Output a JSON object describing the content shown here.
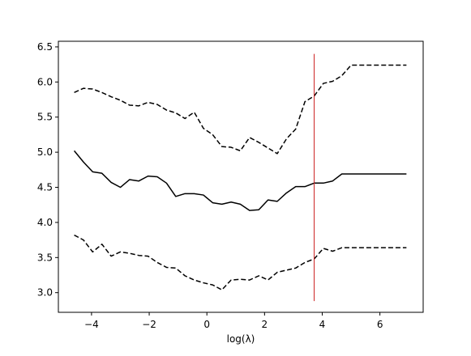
{
  "chart_data": {
    "type": "line",
    "xlabel": "log(λ)",
    "ylabel": "",
    "xlim": [
      -5.15,
      7.5
    ],
    "ylim": [
      2.72,
      6.58
    ],
    "xticks": [
      -4,
      -2,
      0,
      2,
      4,
      6
    ],
    "xtick_labels": [
      "−4",
      "−2",
      "0",
      "2",
      "4",
      "6"
    ],
    "yticks": [
      3.0,
      3.5,
      4.0,
      4.5,
      5.0,
      5.5,
      6.0,
      6.5
    ],
    "ytick_labels": [
      "3.0",
      "3.5",
      "4.0",
      "4.5",
      "5.0",
      "5.5",
      "6.0",
      "6.5"
    ],
    "grid": false,
    "x": [
      -4.6,
      -4.28,
      -3.96,
      -3.64,
      -3.32,
      -3.0,
      -2.68,
      -2.36,
      -2.04,
      -1.72,
      -1.4,
      -1.08,
      -0.76,
      -0.44,
      -0.12,
      0.2,
      0.52,
      0.84,
      1.16,
      1.48,
      1.8,
      2.12,
      2.44,
      2.76,
      3.08,
      3.4,
      3.72,
      4.04,
      4.36,
      4.68,
      5.0,
      5.32,
      5.64,
      5.96,
      6.28,
      6.6,
      6.92
    ],
    "series": [
      {
        "role": "mean",
        "color": "#000000",
        "dash": "solid",
        "values": [
          5.02,
          4.86,
          4.72,
          4.7,
          4.57,
          4.5,
          4.61,
          4.59,
          4.66,
          4.65,
          4.56,
          4.37,
          4.41,
          4.41,
          4.39,
          4.28,
          4.26,
          4.29,
          4.26,
          4.17,
          4.18,
          4.32,
          4.3,
          4.42,
          4.51,
          4.51,
          4.56,
          4.56,
          4.59,
          4.69,
          4.69,
          4.69,
          4.69,
          4.69,
          4.69,
          4.69,
          4.69
        ]
      },
      {
        "role": "upper",
        "color": "#000000",
        "dash": "dashed",
        "values": [
          5.85,
          5.91,
          5.9,
          5.85,
          5.79,
          5.74,
          5.67,
          5.66,
          5.71,
          5.68,
          5.6,
          5.56,
          5.48,
          5.57,
          5.34,
          5.25,
          5.08,
          5.07,
          5.02,
          5.21,
          5.14,
          5.06,
          4.98,
          5.19,
          5.33,
          5.72,
          5.8,
          5.98,
          6.01,
          6.09,
          6.24,
          6.24,
          6.24,
          6.24,
          6.24,
          6.24,
          6.24
        ]
      },
      {
        "role": "lower",
        "color": "#000000",
        "dash": "dashed",
        "values": [
          3.82,
          3.75,
          3.58,
          3.69,
          3.52,
          3.58,
          3.56,
          3.53,
          3.52,
          3.43,
          3.36,
          3.35,
          3.24,
          3.18,
          3.14,
          3.11,
          3.04,
          3.18,
          3.19,
          3.18,
          3.24,
          3.18,
          3.29,
          3.32,
          3.35,
          3.43,
          3.48,
          3.63,
          3.59,
          3.64,
          3.64,
          3.64,
          3.64,
          3.64,
          3.64,
          3.64,
          3.64
        ]
      }
    ],
    "vline": {
      "x": 3.72,
      "y_from": 2.88,
      "y_to": 6.4,
      "color": "#cc2222"
    }
  }
}
